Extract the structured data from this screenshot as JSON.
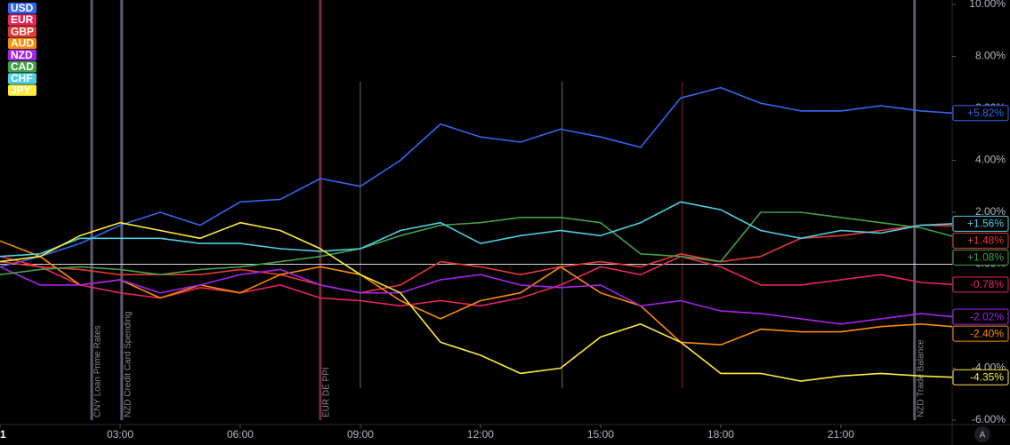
{
  "chart_data": {
    "type": "line",
    "x": [
      0,
      1,
      2,
      3,
      4,
      5,
      6,
      7,
      8,
      9,
      10,
      11,
      12,
      13,
      14,
      15,
      16,
      17,
      18,
      19,
      20,
      21,
      22,
      23,
      23.78
    ],
    "xlim": [
      0,
      23.78
    ],
    "xticks": [
      {
        "value": 0,
        "label": "1"
      },
      {
        "value": 3,
        "label": "03:00"
      },
      {
        "value": 6,
        "label": "06:00"
      },
      {
        "value": 9,
        "label": "09:00"
      },
      {
        "value": 12,
        "label": "12:00"
      },
      {
        "value": 15,
        "label": "15:00"
      },
      {
        "value": 18,
        "label": "18:00"
      },
      {
        "value": 21,
        "label": "21:00"
      }
    ],
    "ylim": [
      -6,
      10
    ],
    "yticks": [
      {
        "value": 10,
        "label": "10.00%"
      },
      {
        "value": 8,
        "label": "8.00%"
      },
      {
        "value": 6,
        "label": "6.00%"
      },
      {
        "value": 4,
        "label": "4.00%"
      },
      {
        "value": 2,
        "label": "2.00%"
      },
      {
        "value": 0,
        "label": "0.00%"
      },
      {
        "value": -2,
        "label": "-2.00%"
      },
      {
        "value": -4,
        "label": "-4.00%"
      },
      {
        "value": -6,
        "label": "-6.00%"
      }
    ],
    "series": [
      {
        "name": "USD",
        "color": "#3466f0",
        "values": [
          -0.1,
          0.3,
          0.8,
          1.5,
          2.0,
          1.5,
          2.4,
          2.5,
          3.3,
          3.0,
          4.0,
          5.4,
          4.9,
          4.7,
          5.2,
          4.9,
          4.5,
          6.4,
          6.8,
          6.2,
          5.9,
          5.9,
          6.1,
          5.9,
          5.82
        ],
        "value_labels": [
          null,
          null,
          null,
          null,
          null,
          null,
          null,
          null,
          null,
          null,
          null,
          null,
          null,
          null,
          null,
          null,
          null,
          null,
          null,
          null,
          null,
          null,
          null,
          null,
          "+5.82%"
        ]
      },
      {
        "name": "EUR",
        "color": "#e8265e",
        "values": [
          0.3,
          -0.1,
          -0.8,
          -1.1,
          -1.3,
          -0.9,
          -1.1,
          -0.8,
          -1.3,
          -1.4,
          -1.6,
          -1.4,
          -1.6,
          -1.3,
          -0.8,
          -0.1,
          -0.4,
          0.3,
          -0.1,
          -0.8,
          -0.8,
          -0.6,
          -0.4,
          -0.7,
          -0.78
        ],
        "value_labels": [
          null,
          null,
          null,
          null,
          null,
          null,
          null,
          null,
          null,
          null,
          null,
          null,
          null,
          null,
          null,
          null,
          null,
          null,
          null,
          null,
          null,
          null,
          null,
          null,
          "-0.78%"
        ]
      },
      {
        "name": "GBP",
        "color": "#e53935",
        "values": [
          0.1,
          -0.1,
          -0.2,
          -0.4,
          -0.4,
          -0.4,
          -0.2,
          -0.4,
          -0.8,
          -1.1,
          -0.8,
          0.1,
          -0.1,
          -0.4,
          -0.1,
          0.1,
          -0.1,
          0.4,
          0.1,
          0.3,
          1.0,
          1.1,
          1.3,
          1.5,
          1.48
        ],
        "value_labels": [
          null,
          null,
          null,
          null,
          null,
          null,
          null,
          null,
          null,
          null,
          null,
          null,
          null,
          null,
          null,
          null,
          null,
          null,
          null,
          null,
          null,
          null,
          null,
          null,
          "+1.48%"
        ]
      },
      {
        "name": "AUD",
        "color": "#fb8c00",
        "values": [
          0.9,
          0.3,
          -0.8,
          -0.6,
          -1.3,
          -0.8,
          -1.1,
          -0.4,
          -0.1,
          -0.4,
          -1.4,
          -2.1,
          -1.4,
          -1.1,
          -0.1,
          -1.1,
          -1.6,
          -3.0,
          -3.1,
          -2.5,
          -2.6,
          -2.6,
          -2.4,
          -2.3,
          -2.4
        ],
        "value_labels": [
          null,
          null,
          null,
          null,
          null,
          null,
          null,
          null,
          null,
          null,
          null,
          null,
          null,
          null,
          null,
          null,
          null,
          null,
          null,
          null,
          null,
          null,
          null,
          null,
          "-2.40%"
        ]
      },
      {
        "name": "NZD",
        "color": "#a424e8",
        "values": [
          -0.1,
          -0.8,
          -0.8,
          -0.6,
          -1.1,
          -0.8,
          -0.4,
          -0.2,
          -0.8,
          -1.1,
          -1.1,
          -0.6,
          -0.4,
          -0.8,
          -0.9,
          -0.8,
          -1.6,
          -1.4,
          -1.8,
          -1.9,
          -2.1,
          -2.3,
          -2.1,
          -1.9,
          -2.02
        ],
        "value_labels": [
          null,
          null,
          null,
          null,
          null,
          null,
          null,
          null,
          null,
          null,
          null,
          null,
          null,
          null,
          null,
          null,
          null,
          null,
          null,
          null,
          null,
          null,
          null,
          null,
          "-2.02%"
        ]
      },
      {
        "name": "CAD",
        "color": "#43a047",
        "values": [
          -0.4,
          -0.2,
          -0.1,
          -0.2,
          -0.4,
          -0.2,
          -0.1,
          0.1,
          0.3,
          0.6,
          1.1,
          1.5,
          1.6,
          1.8,
          1.8,
          1.6,
          0.4,
          0.3,
          0.1,
          2.0,
          2.0,
          1.8,
          1.6,
          1.4,
          1.08
        ],
        "value_labels": [
          null,
          null,
          null,
          null,
          null,
          null,
          null,
          null,
          null,
          null,
          null,
          null,
          null,
          null,
          null,
          null,
          null,
          null,
          null,
          null,
          null,
          null,
          null,
          null,
          "+1.08%"
        ]
      },
      {
        "name": "CHF",
        "color": "#4dd0e1",
        "values": [
          0.3,
          0.4,
          1.0,
          1.0,
          1.0,
          0.8,
          0.8,
          0.6,
          0.5,
          0.6,
          1.3,
          1.6,
          0.8,
          1.1,
          1.3,
          1.1,
          1.6,
          2.4,
          2.1,
          1.3,
          1.0,
          1.3,
          1.2,
          1.5,
          1.56
        ],
        "value_labels": [
          null,
          null,
          null,
          null,
          null,
          null,
          null,
          null,
          null,
          null,
          null,
          null,
          null,
          null,
          null,
          null,
          null,
          null,
          null,
          null,
          null,
          null,
          null,
          null,
          "+1.56%"
        ]
      },
      {
        "name": "JPY",
        "color": "#ffeb3b",
        "values": [
          0.1,
          0.3,
          1.1,
          1.6,
          1.3,
          1.0,
          1.6,
          1.3,
          0.6,
          -0.4,
          -1.1,
          -3.0,
          -3.5,
          -4.2,
          -4.0,
          -2.8,
          -2.3,
          -3.0,
          -4.2,
          -4.2,
          -4.5,
          -4.3,
          -4.2,
          -4.3,
          -4.35
        ],
        "value_labels": [
          null,
          null,
          null,
          null,
          null,
          null,
          null,
          null,
          null,
          null,
          null,
          null,
          null,
          null,
          null,
          null,
          null,
          null,
          null,
          null,
          null,
          null,
          null,
          null,
          "-4.35%"
        ]
      }
    ],
    "events": [
      {
        "x": 2.29,
        "label": "CNY Loan Prime Rates",
        "color": "#5c5870"
      },
      {
        "x": 3.04,
        "label": "NZD Credit Card Spending",
        "color": "#5c5870"
      },
      {
        "x": 8.0,
        "label": "EUR DE PPI",
        "color": "#7a2a40"
      },
      {
        "x": 9.0,
        "label": null,
        "color": "#55555a"
      },
      {
        "x": 14.04,
        "label": null,
        "color": "#55555a"
      },
      {
        "x": 17.04,
        "label": null,
        "color": "#6a1e28"
      },
      {
        "x": 22.84,
        "label": "NZD Trade Balance",
        "color": "#5c5870"
      }
    ],
    "zero_line": true,
    "legend": "top-left"
  },
  "ui": {
    "auto_scale_button": "A"
  }
}
